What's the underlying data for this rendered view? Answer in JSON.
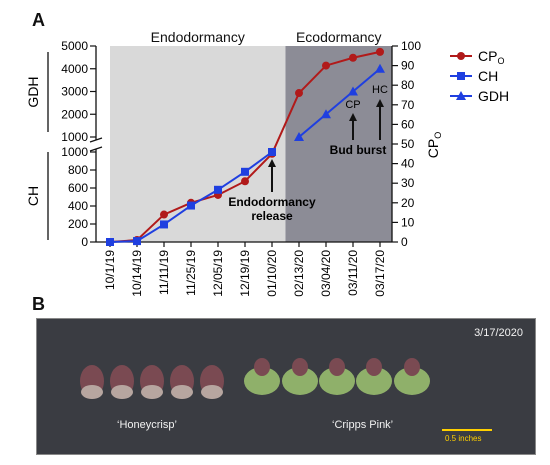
{
  "panel_a_label": "A",
  "panel_b_label": "B",
  "chart_data": {
    "type": "line",
    "categories": [
      "10/1/19",
      "10/14/19",
      "11/11/19",
      "11/25/19",
      "12/05/19",
      "12/19/19",
      "01/10/20",
      "02/13/20",
      "03/04/20",
      "03/11/20",
      "03/17/20"
    ],
    "phases": [
      {
        "label": "Endodormancy",
        "color": "#d9d9d9",
        "from_index": 0,
        "to_index": 6.5
      },
      {
        "label": "Ecodormancy",
        "color": "#8c8c96",
        "from_index": 6.5,
        "to_index": 10
      }
    ],
    "series": [
      {
        "name": "CP",
        "name_subscript": "O",
        "axis": "right",
        "color": "#b11a1a",
        "marker": "circle",
        "values": [
          0,
          1,
          14,
          20,
          24,
          31,
          45,
          76,
          90,
          94,
          97
        ]
      },
      {
        "name": "CH",
        "axis": "left-lower",
        "color": "#1f3fe0",
        "marker": "square",
        "values": [
          0,
          10,
          195,
          405,
          580,
          780,
          1000,
          null,
          null,
          null,
          null
        ]
      },
      {
        "name": "GDH",
        "axis": "left-upper",
        "color": "#1f3fe0",
        "marker": "triangle",
        "values": [
          null,
          null,
          null,
          null,
          null,
          null,
          null,
          1000,
          2000,
          3000,
          4000
        ]
      }
    ],
    "left_upper_axis": {
      "label": "GDH",
      "ticks": [
        "1000",
        "2000",
        "3000",
        "4000",
        "5000"
      ],
      "ylim": [
        0,
        5000
      ]
    },
    "left_lower_axis": {
      "label": "CH",
      "ticks": [
        "0",
        "200",
        "400",
        "600",
        "800",
        "1000"
      ],
      "ylim": [
        0,
        1000
      ]
    },
    "right_axis": {
      "label": "CP",
      "label_subscript": "O",
      "ticks": [
        "0",
        "10",
        "20",
        "30",
        "40",
        "50",
        "60",
        "70",
        "80",
        "90",
        "100"
      ],
      "ylim": [
        0,
        100
      ]
    },
    "annotations": [
      {
        "text": "Endodormancy",
        "text2": "release",
        "arrow_index": 6
      },
      {
        "text": "Bud burst",
        "top_text": "CP",
        "arrow_index": 9
      },
      {
        "text": "",
        "top_text": "HC",
        "arrow_index": 10
      }
    ],
    "legend_position": "right"
  },
  "photo": {
    "date": "3/17/2020",
    "label_left": "‘Honeycrisp’",
    "label_right": "‘Cripps Pink’",
    "scale": "0.5 inches"
  },
  "colors": {
    "photo_bg": "#3a3c42",
    "bud_red": "#7a4a52",
    "bud_green": "#8fb06a"
  }
}
